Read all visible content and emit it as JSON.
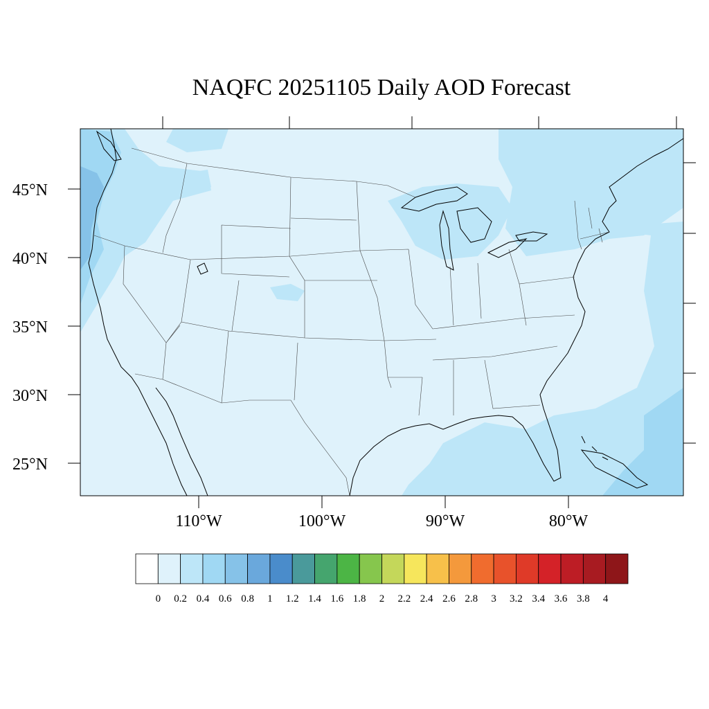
{
  "title": "NAQFC 20251105 Daily AOD Forecast",
  "map": {
    "projection": "lambert-conformal",
    "region": "CONUS",
    "variable": "AOD",
    "lat_labels": [
      "45°N",
      "40°N",
      "35°N",
      "30°N",
      "25°N"
    ],
    "lon_labels": [
      "110°W",
      "100°W",
      "90°W",
      "80°W"
    ],
    "background_level_color": "#dff2fb",
    "land_outline_color": "#000000"
  },
  "colorbar": {
    "labels": [
      "0",
      "0.2",
      "0.4",
      "0.6",
      "0.8",
      "1",
      "1.2",
      "1.4",
      "1.6",
      "1.8",
      "2",
      "2.2",
      "2.4",
      "2.6",
      "2.8",
      "3",
      "3.2",
      "3.4",
      "3.6",
      "3.8",
      "4"
    ],
    "colors": [
      "#ffffff",
      "#dff2fb",
      "#bde6f8",
      "#a0d8f3",
      "#86c2e8",
      "#6aa8dc",
      "#4a8ccb",
      "#4a9a9b",
      "#45a56e",
      "#4cb545",
      "#86c64d",
      "#c4d75a",
      "#f6e65c",
      "#f7c04a",
      "#f4993c",
      "#f06c2e",
      "#e8522b",
      "#df3a28",
      "#d42228",
      "#bd1d25",
      "#a81b21",
      "#8e1619"
    ]
  }
}
